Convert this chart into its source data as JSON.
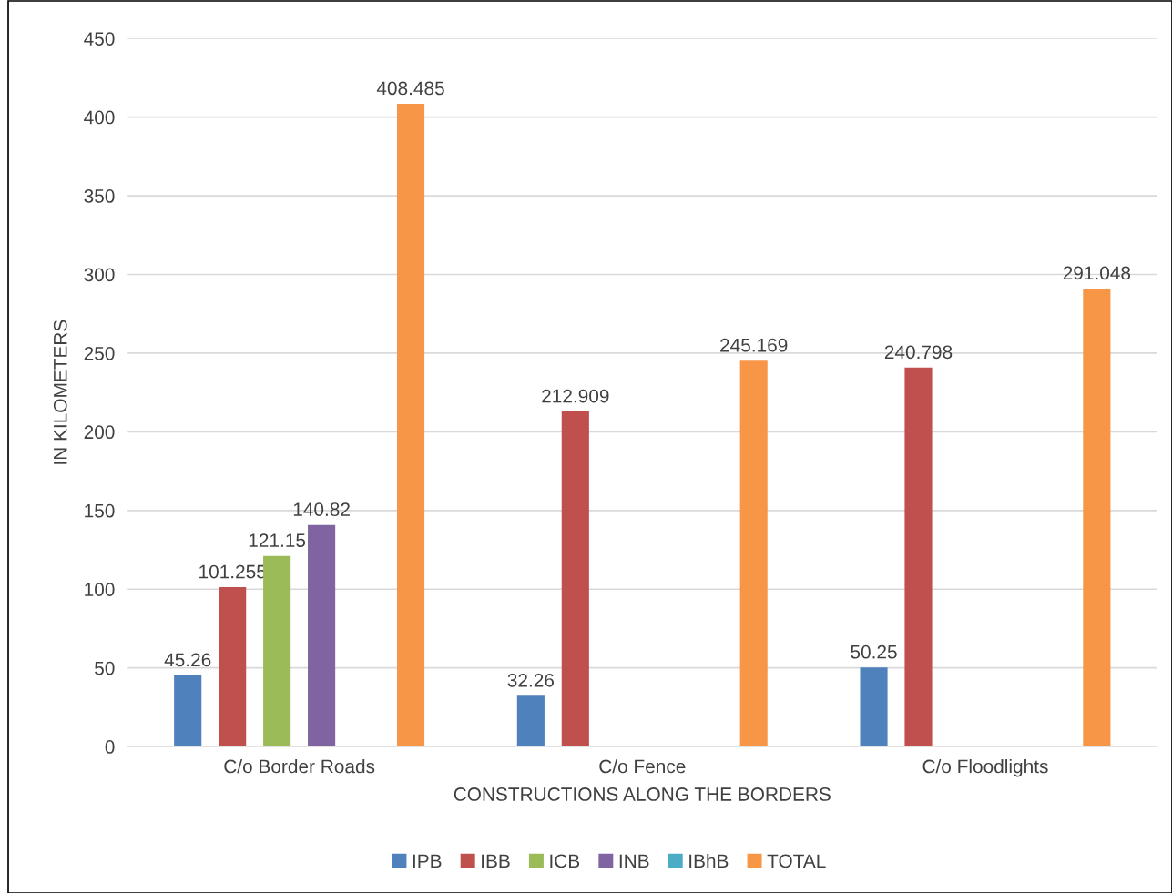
{
  "chart_data": {
    "type": "bar",
    "xlabel": "CONSTRUCTIONS ALONG THE BORDERS",
    "ylabel": "IN KILOMETERS",
    "categories": [
      "C/o Border Roads",
      "C/o Fence",
      "C/o Floodlights"
    ],
    "series": [
      {
        "name": "IPB",
        "color": "#4f81bd",
        "values": [
          45.26,
          32.26,
          50.25
        ]
      },
      {
        "name": "IBB",
        "color": "#c0504d",
        "values": [
          101.255,
          212.909,
          240.798
        ]
      },
      {
        "name": "ICB",
        "color": "#9bbb59",
        "values": [
          121.15,
          null,
          null
        ]
      },
      {
        "name": "INB",
        "color": "#8064a2",
        "values": [
          140.82,
          null,
          null
        ]
      },
      {
        "name": "IBhB",
        "color": "#4bacc6",
        "values": [
          null,
          null,
          null
        ]
      },
      {
        "name": "TOTAL",
        "color": "#f79646",
        "values": [
          408.485,
          245.169,
          291.048
        ]
      }
    ],
    "ylim": [
      0,
      450
    ],
    "yticks": [
      0,
      50,
      100,
      150,
      200,
      250,
      300,
      350,
      400,
      450
    ],
    "grid": "y",
    "legend": "bottom",
    "data_labels": true
  }
}
